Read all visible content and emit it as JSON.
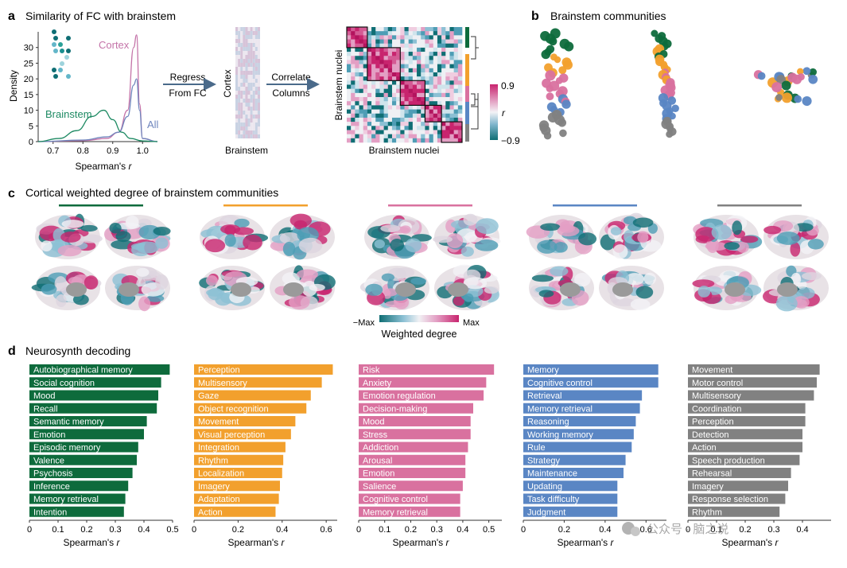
{
  "colors": {
    "green": "#0e6b3c",
    "orange": "#f2a02d",
    "pink": "#d9719f",
    "blue": "#5a86c4",
    "gray": "#818181",
    "cortex": "#c473a8",
    "all": "#6f86bd",
    "brainstem": "#1e8a63",
    "arrow": "#4a6a8a"
  },
  "panel_a": {
    "letter": "a",
    "title": "Similarity of FC with brainstem",
    "density": {
      "ylabel": "Density",
      "xlabel_main": "Spearman's ",
      "xlabel_var": "r",
      "xticks": [
        "0.7",
        "0.8",
        "0.9",
        "1.0"
      ],
      "yticks": [
        "0",
        "5",
        "10",
        "15",
        "20",
        "25",
        "30"
      ],
      "labels": {
        "cortex": "Cortex",
        "brainstem": "Brainstem",
        "all": "All"
      }
    },
    "regress": {
      "line1": "Regress",
      "line2": "From FC"
    },
    "matrix1": {
      "side_label": "Cortex",
      "bottom_label": "Brainstem"
    },
    "correlate": {
      "line1": "Correlate",
      "line2": "Columns"
    },
    "matrix2": {
      "ylabel": "Brainstem nuclei",
      "xlabel": "Brainstem nuclei"
    },
    "colorbar": {
      "max": "0.9",
      "min": "−0.9",
      "label": "r"
    }
  },
  "panel_b": {
    "letter": "b",
    "title": "Brainstem communities"
  },
  "panel_c": {
    "letter": "c",
    "title": "Cortical weighted degree of brainstem communities",
    "colorbar": {
      "min": "−Max",
      "max": "Max",
      "label": "Weighted degree"
    }
  },
  "panel_d": {
    "letter": "d",
    "title": "Neurosynth decoding",
    "xlabel_main": "Spearman's ",
    "xlabel_var": "r",
    "watermark": "公众号 · 脑之说"
  },
  "chart_data": [
    {
      "type": "line",
      "title": "Similarity of FC with brainstem",
      "xlabel": "Spearman's r",
      "ylabel": "Density",
      "xlim": [
        0.65,
        1.05
      ],
      "ylim": [
        0,
        35
      ],
      "series": [
        {
          "name": "Cortex",
          "x": [
            0.65,
            0.8,
            0.88,
            0.92,
            0.95,
            0.97,
            0.98,
            0.99,
            1.0,
            1.05
          ],
          "y": [
            0,
            0.3,
            1,
            3,
            10,
            30,
            34,
            12,
            1,
            0
          ]
        },
        {
          "name": "All",
          "x": [
            0.65,
            0.8,
            0.88,
            0.92,
            0.95,
            0.97,
            0.98,
            0.99,
            1.0,
            1.05
          ],
          "y": [
            0,
            0.5,
            1.5,
            3,
            8,
            18,
            20,
            10,
            1,
            0
          ]
        },
        {
          "name": "Brainstem",
          "x": [
            0.65,
            0.72,
            0.78,
            0.83,
            0.87,
            0.9,
            0.93,
            0.96,
            1.0,
            1.05
          ],
          "y": [
            0,
            1,
            3.5,
            8,
            10,
            7,
            3,
            1,
            0.2,
            0
          ]
        }
      ]
    },
    {
      "type": "bar",
      "title": "Neurosynth decoding — green community",
      "xlabel": "Spearman's r",
      "xlim": [
        0,
        0.5
      ],
      "xticks": [
        "0",
        "0.1",
        "0.2",
        "0.3",
        "0.4",
        "0.5"
      ],
      "color": "#0e6b3c",
      "categories": [
        "Autobiographical memory",
        "Social cognition",
        "Mood",
        "Recall",
        "Semantic memory",
        "Emotion",
        "Episodic memory",
        "Valence",
        "Psychosis",
        "Inference",
        "Memory retrieval",
        "Intention"
      ],
      "values": [
        0.49,
        0.46,
        0.45,
        0.445,
        0.41,
        0.4,
        0.38,
        0.375,
        0.36,
        0.345,
        0.335,
        0.33
      ]
    },
    {
      "type": "bar",
      "title": "Neurosynth decoding — orange community",
      "xlabel": "Spearman's r",
      "xlim": [
        0,
        0.65
      ],
      "xticks": [
        "0",
        "0.2",
        "0.4",
        "0.6"
      ],
      "color": "#f2a02d",
      "categories": [
        "Perception",
        "Multisensory",
        "Gaze",
        "Object recognition",
        "Movement",
        "Visual perception",
        "Integration",
        "Rhythm",
        "Localization",
        "Imagery",
        "Adaptation",
        "Action"
      ],
      "values": [
        0.63,
        0.58,
        0.53,
        0.51,
        0.46,
        0.44,
        0.415,
        0.405,
        0.4,
        0.39,
        0.385,
        0.37
      ]
    },
    {
      "type": "bar",
      "title": "Neurosynth decoding — pink community",
      "xlabel": "Spearman's r",
      "xlim": [
        0,
        0.55
      ],
      "xticks": [
        "0",
        "0.1",
        "0.2",
        "0.3",
        "0.4",
        "0.5"
      ],
      "color": "#d9719f",
      "categories": [
        "Risk",
        "Anxiety",
        "Emotion regulation",
        "Decision-making",
        "Mood",
        "Stress",
        "Addiction",
        "Arousal",
        "Emotion",
        "Salience",
        "Cognitive control",
        "Memory retrieval"
      ],
      "values": [
        0.52,
        0.49,
        0.48,
        0.44,
        0.43,
        0.43,
        0.42,
        0.41,
        0.41,
        0.4,
        0.39,
        0.39
      ]
    },
    {
      "type": "bar",
      "title": "Neurosynth decoding — blue community",
      "xlabel": "Spearman's r",
      "xlim": [
        0,
        0.7
      ],
      "xticks": [
        "0",
        "0.2",
        "0.4",
        "0.6"
      ],
      "color": "#5a86c4",
      "categories": [
        "Memory",
        "Cognitive control",
        "Retrieval",
        "Memory retrieval",
        "Reasoning",
        "Working memory",
        "Rule",
        "Strategy",
        "Maintenance",
        "Updating",
        "Task difficulty",
        "Judgment"
      ],
      "values": [
        0.66,
        0.66,
        0.58,
        0.57,
        0.55,
        0.54,
        0.53,
        0.5,
        0.49,
        0.46,
        0.46,
        0.46
      ]
    },
    {
      "type": "bar",
      "title": "Neurosynth decoding — gray community",
      "xlabel": "Spearman's r",
      "xlim": [
        0,
        0.5
      ],
      "xticks": [
        "0",
        "0.1",
        "0.2",
        "0.3",
        "0.4"
      ],
      "color": "#818181",
      "categories": [
        "Movement",
        "Motor control",
        "Multisensory",
        "Coordination",
        "Perception",
        "Detection",
        "Action",
        "Speech production",
        "Rehearsal",
        "Imagery",
        "Response selection",
        "Rhythm"
      ],
      "values": [
        0.46,
        0.45,
        0.44,
        0.41,
        0.41,
        0.4,
        0.4,
        0.39,
        0.36,
        0.35,
        0.34,
        0.32
      ]
    }
  ]
}
